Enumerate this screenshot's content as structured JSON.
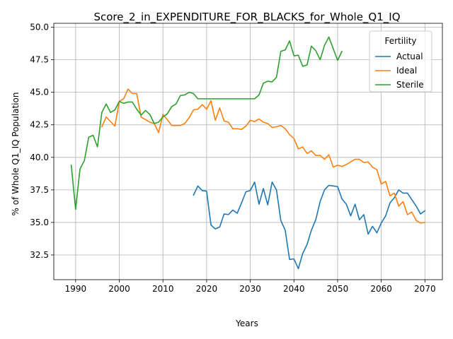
{
  "chart_data": {
    "type": "line",
    "title": "Score_2_in_EXPENDITURE_FOR_BLACKS_for_Whole_Q1_IQ",
    "xlabel": "Years",
    "ylabel": "% of Whole Q1_IQ Population",
    "xlim": [
      1985,
      2074
    ],
    "ylim": [
      30.6,
      50.3
    ],
    "xticks": [
      1990,
      2000,
      2010,
      2020,
      2030,
      2040,
      2050,
      2060,
      2070
    ],
    "yticks": [
      32.5,
      35.0,
      37.5,
      40.0,
      42.5,
      45.0,
      47.5,
      50.0
    ],
    "ytick_labels": [
      "32.5",
      "35.0",
      "37.5",
      "40.0",
      "42.5",
      "45.0",
      "47.5",
      "50.0"
    ],
    "grid": true,
    "legend": {
      "title": "Fertility",
      "position": "top-right"
    },
    "series": [
      {
        "name": "Actual",
        "color": "#1f77b4",
        "x": [
          2017,
          2018,
          2019,
          2020,
          2021,
          2022,
          2023,
          2024,
          2025,
          2026,
          2027,
          2028,
          2029,
          2030,
          2031,
          2032,
          2033,
          2034,
          2035,
          2036,
          2037,
          2038,
          2039,
          2040,
          2041,
          2042,
          2043,
          2044,
          2045,
          2046,
          2047,
          2048,
          2049,
          2050,
          2051,
          2052,
          2053,
          2054,
          2055,
          2056,
          2057,
          2058,
          2059,
          2060,
          2061,
          2062,
          2063,
          2064,
          2065,
          2066,
          2067,
          2068,
          2069,
          2070
        ],
        "y": [
          37.1,
          37.8,
          37.45,
          37.4,
          34.8,
          34.5,
          34.65,
          35.65,
          35.6,
          35.95,
          35.7,
          36.5,
          37.35,
          37.45,
          38.1,
          36.4,
          37.6,
          36.35,
          38.1,
          37.5,
          35.15,
          34.4,
          32.15,
          32.2,
          31.45,
          32.6,
          33.3,
          34.4,
          35.2,
          36.6,
          37.5,
          37.85,
          37.8,
          37.75,
          36.8,
          36.4,
          35.5,
          36.4,
          35.2,
          35.6,
          34.1,
          34.7,
          34.2,
          34.95,
          35.5,
          36.5,
          36.9,
          37.5,
          37.25,
          37.25,
          36.75,
          36.25,
          35.65,
          35.9
        ]
      },
      {
        "name": "Ideal",
        "color": "#ff7f0e",
        "x": [
          1996,
          1997,
          1998,
          1999,
          2000,
          2001,
          2002,
          2003,
          2004,
          2005,
          2006,
          2007,
          2008,
          2009,
          2010,
          2011,
          2012,
          2013,
          2014,
          2015,
          2016,
          2017,
          2018,
          2019,
          2020,
          2021,
          2022,
          2023,
          2024,
          2025,
          2026,
          2027,
          2028,
          2029,
          2030,
          2031,
          2032,
          2033,
          2034,
          2035,
          2036,
          2037,
          2038,
          2039,
          2040,
          2041,
          2042,
          2043,
          2044,
          2045,
          2046,
          2047,
          2048,
          2049,
          2050,
          2051,
          2052,
          2053,
          2054,
          2055,
          2056,
          2057,
          2058,
          2059,
          2060,
          2061,
          2062,
          2063,
          2064,
          2065,
          2066,
          2067,
          2068,
          2069,
          2070
        ],
        "y": [
          42.35,
          43.1,
          42.75,
          42.4,
          44.3,
          44.5,
          45.25,
          44.9,
          44.9,
          43.1,
          42.9,
          42.7,
          42.6,
          41.9,
          43.3,
          42.9,
          42.45,
          42.45,
          42.45,
          42.6,
          43.05,
          43.65,
          43.7,
          44.05,
          43.7,
          44.35,
          42.85,
          43.8,
          42.8,
          42.7,
          42.2,
          42.2,
          42.15,
          42.4,
          42.85,
          42.75,
          42.95,
          42.7,
          42.6,
          42.3,
          42.35,
          42.45,
          42.2,
          41.75,
          41.45,
          40.65,
          40.8,
          40.3,
          40.5,
          40.15,
          40.15,
          39.85,
          40.2,
          39.25,
          39.4,
          39.3,
          39.45,
          39.65,
          39.85,
          39.85,
          39.6,
          39.65,
          39.25,
          39.05,
          37.95,
          38.15,
          37.05,
          37.25,
          36.25,
          36.6,
          35.6,
          35.8,
          35.15,
          34.95,
          35.0
        ]
      },
      {
        "name": "Sterile",
        "color": "#2ca02c",
        "x": [
          1989,
          1990,
          1991,
          1992,
          1993,
          1994,
          1995,
          1996,
          1997,
          1998,
          1999,
          2000,
          2001,
          2002,
          2003,
          2004,
          2005,
          2006,
          2007,
          2008,
          2009,
          2010,
          2011,
          2012,
          2013,
          2014,
          2015,
          2016,
          2017,
          2018,
          2019,
          2020,
          2021,
          2022,
          2023,
          2024,
          2025,
          2026,
          2027,
          2028,
          2029,
          2030,
          2031,
          2032,
          2033,
          2034,
          2035,
          2036,
          2037,
          2038,
          2039,
          2040,
          2041,
          2042,
          2043,
          2044,
          2045,
          2046,
          2047,
          2048,
          2049,
          2050,
          2051
        ],
        "y": [
          39.4,
          36.0,
          39.1,
          39.75,
          41.55,
          41.7,
          40.8,
          43.45,
          44.1,
          43.45,
          43.65,
          44.3,
          44.15,
          44.25,
          44.25,
          43.7,
          43.25,
          43.6,
          43.3,
          42.6,
          42.7,
          43.1,
          43.35,
          43.9,
          44.1,
          44.75,
          44.8,
          45.0,
          44.9,
          44.5,
          44.5,
          44.5,
          44.5,
          44.5,
          44.5,
          44.5,
          44.5,
          44.5,
          44.5,
          44.5,
          44.5,
          44.5,
          44.5,
          44.8,
          45.7,
          45.85,
          45.8,
          46.15,
          48.15,
          48.25,
          48.95,
          47.8,
          47.85,
          47.0,
          47.1,
          48.55,
          48.2,
          47.5,
          48.6,
          49.25,
          48.35,
          47.45,
          48.15
        ]
      }
    ]
  }
}
